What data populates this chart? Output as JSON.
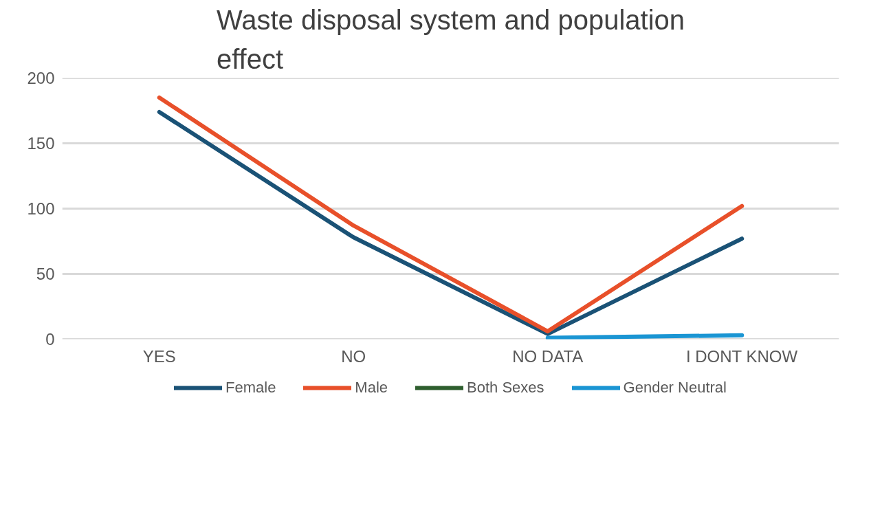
{
  "chart_data": {
    "type": "line",
    "title": "Waste disposal system and population effect",
    "categories": [
      "YES",
      "NO",
      "NO DATA",
      "I DONT KNOW"
    ],
    "series": [
      {
        "name": "Female",
        "color": "#1a5276",
        "values": [
          174,
          78,
          4,
          77
        ]
      },
      {
        "name": "Male",
        "color": "#e8502a",
        "values": [
          185,
          87,
          6,
          102
        ]
      },
      {
        "name": "Both Sexes",
        "color": "#2e5e2e",
        "values": [
          null,
          null,
          null,
          null
        ]
      },
      {
        "name": "Gender Neutral",
        "color": "#1a95d3",
        "values": [
          null,
          null,
          1,
          3
        ]
      }
    ],
    "ylim": [
      0,
      200
    ],
    "yticks": [
      0,
      50,
      100,
      150,
      200
    ],
    "grid": "y",
    "legend": "bottom",
    "marker": "none",
    "line_style": "solid"
  }
}
